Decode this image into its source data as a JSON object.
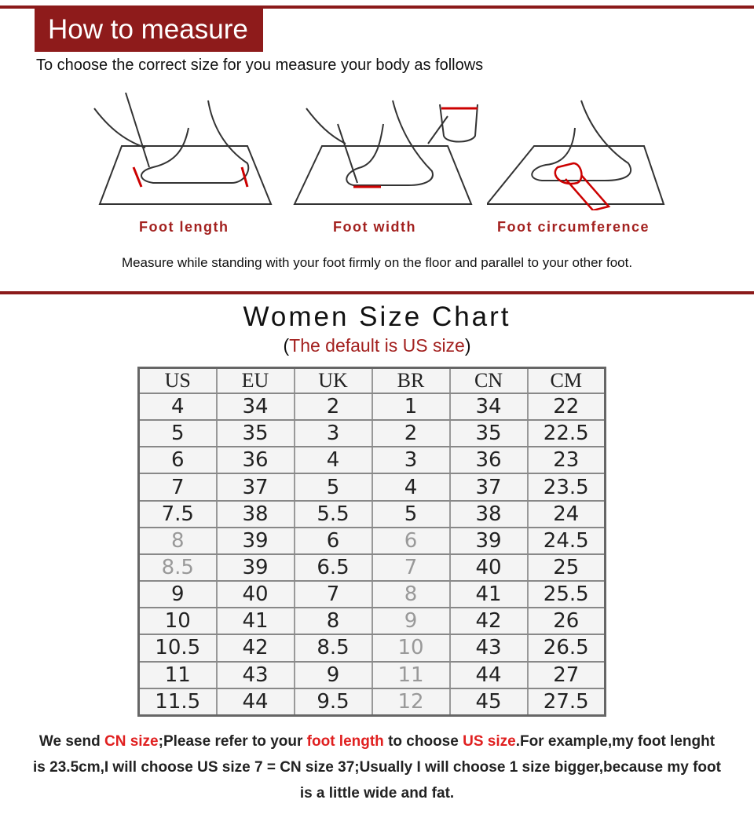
{
  "header": {
    "title": "How to measure",
    "subtitle": "To choose the correct size for you measure your body as follows"
  },
  "illustrations": [
    {
      "icon": "foot-length-illustration",
      "caption": "Foot length"
    },
    {
      "icon": "foot-width-illustration",
      "caption": "Foot width"
    },
    {
      "icon": "foot-circumference-illustration",
      "caption": "Foot circumference"
    }
  ],
  "note": "Measure while standing with your foot firmly on the floor and parallel to your other foot.",
  "chart": {
    "title": "Women Size Chart",
    "default_open": "(",
    "default_text": "The default is US size",
    "default_close": ")",
    "columns": [
      "US",
      "EU",
      "UK",
      "BR",
      "CN",
      "CM"
    ],
    "rows": [
      [
        "4",
        "34",
        "2",
        "1",
        "34",
        "22"
      ],
      [
        "5",
        "35",
        "3",
        "2",
        "35",
        "22.5"
      ],
      [
        "6",
        "36",
        "4",
        "3",
        "36",
        "23"
      ],
      [
        "7",
        "37",
        "5",
        "4",
        "37",
        "23.5"
      ],
      [
        "7.5",
        "38",
        "5.5",
        "5",
        "38",
        "24"
      ],
      [
        "8",
        "39",
        "6",
        "6",
        "39",
        "24.5"
      ],
      [
        "8.5",
        "39",
        "6.5",
        "7",
        "40",
        "25"
      ],
      [
        "9",
        "40",
        "7",
        "8",
        "41",
        "25.5"
      ],
      [
        "10",
        "41",
        "8",
        "9",
        "42",
        "26"
      ],
      [
        "10.5",
        "42",
        "8.5",
        "10",
        "43",
        "26.5"
      ],
      [
        "11",
        "43",
        "9",
        "11",
        "44",
        "27"
      ],
      [
        "11.5",
        "44",
        "9.5",
        "12",
        "45",
        "27.5"
      ]
    ]
  },
  "footer": {
    "p1": "We send ",
    "r1": "CN size",
    "p2": ";Please refer to your ",
    "r2": "foot length",
    "p3": " to choose ",
    "r3": "US size",
    "p4": ".For example,my foot lenght is 23.5cm,I will choose US size 7 = CN size 37;Usually I will choose 1 size bigger,because my foot is a little wide and fat."
  },
  "colors": {
    "brand": "#8e1b1b",
    "accent": "#e02020"
  }
}
